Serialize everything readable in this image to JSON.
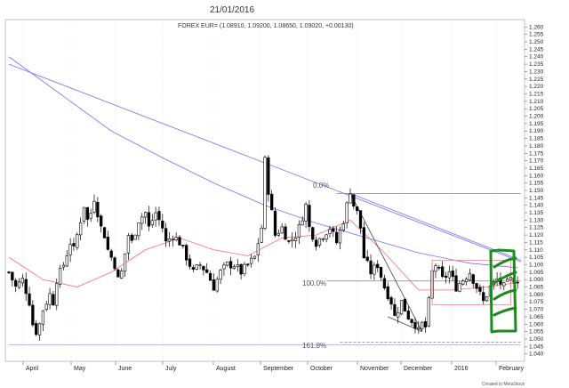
{
  "header": {
    "date": "21/01/2016",
    "subtitle": "FOREX EUR= (1.08910, 1.09200, 1.08650, 1.09020, +0.00130)"
  },
  "credit": "Created in MetaStock",
  "fib_labels": [
    "0.0%",
    "100.0%",
    "161.8%"
  ],
  "colors": {
    "background": "#ffffff",
    "grid": "#cfcfcf",
    "candle": "#000000",
    "ma_short": "#ff6a6a",
    "ma_long": "#6f6fff",
    "fib_line": "#666666",
    "box": "#ff8080",
    "annotation_green": "#1e8a1e"
  },
  "chart_data": {
    "type": "candlestick",
    "ylim": [
      1.035,
      1.265
    ],
    "y_ticks": [
      "1.260",
      "1.255",
      "1.250",
      "1.245",
      "1.240",
      "1.235",
      "1.230",
      "1.225",
      "1.220",
      "1.215",
      "1.210",
      "1.205",
      "1.200",
      "1.195",
      "1.190",
      "1.185",
      "1.180",
      "1.175",
      "1.170",
      "1.165",
      "1.160",
      "1.155",
      "1.150",
      "1.145",
      "1.140",
      "1.135",
      "1.130",
      "1.125",
      "1.120",
      "1.115",
      "1.110",
      "1.105",
      "1.100",
      "1.095",
      "1.090",
      "1.085",
      "1.080",
      "1.075",
      "1.070",
      "1.065",
      "1.060",
      "1.055",
      "1.050",
      "1.045",
      "1.040"
    ],
    "x_labels": [
      "April",
      "May",
      "June",
      "July",
      "August",
      "September",
      "October",
      "November",
      "December",
      "2016",
      "February"
    ],
    "close_path": [
      [
        0,
        1.095
      ],
      [
        2,
        1.085
      ],
      [
        4,
        1.09
      ],
      [
        6,
        1.075
      ],
      [
        7,
        1.06
      ],
      [
        8,
        1.055
      ],
      [
        9,
        1.06
      ],
      [
        10,
        1.07
      ],
      [
        12,
        1.08
      ],
      [
        13,
        1.075
      ],
      [
        14,
        1.09
      ],
      [
        16,
        1.1
      ],
      [
        18,
        1.115
      ],
      [
        19,
        1.11
      ],
      [
        20,
        1.12
      ],
      [
        22,
        1.14
      ],
      [
        23,
        1.13
      ],
      [
        24,
        1.135
      ],
      [
        25,
        1.145
      ],
      [
        27,
        1.125
      ],
      [
        28,
        1.12
      ],
      [
        29,
        1.11
      ],
      [
        31,
        1.1
      ],
      [
        32,
        1.09
      ],
      [
        33,
        1.095
      ],
      [
        35,
        1.12
      ],
      [
        36,
        1.115
      ],
      [
        38,
        1.13
      ],
      [
        40,
        1.135
      ],
      [
        41,
        1.125
      ],
      [
        42,
        1.13
      ],
      [
        43,
        1.135
      ],
      [
        45,
        1.125
      ],
      [
        46,
        1.115
      ],
      [
        48,
        1.12
      ],
      [
        50,
        1.115
      ],
      [
        52,
        1.105
      ],
      [
        54,
        1.095
      ],
      [
        56,
        1.1
      ],
      [
        58,
        1.095
      ],
      [
        59,
        1.09
      ],
      [
        60,
        1.085
      ],
      [
        62,
        1.095
      ],
      [
        64,
        1.1
      ],
      [
        66,
        1.1
      ],
      [
        68,
        1.095
      ],
      [
        70,
        1.1
      ],
      [
        72,
        1.105
      ],
      [
        73,
        1.115
      ],
      [
        74,
        1.125
      ],
      [
        75,
        1.17
      ],
      [
        76,
        1.15
      ],
      [
        77,
        1.135
      ],
      [
        78,
        1.12
      ],
      [
        80,
        1.125
      ],
      [
        82,
        1.115
      ],
      [
        84,
        1.12
      ],
      [
        85,
        1.125
      ],
      [
        87,
        1.14
      ],
      [
        88,
        1.125
      ],
      [
        89,
        1.12
      ],
      [
        90,
        1.115
      ],
      [
        92,
        1.12
      ],
      [
        94,
        1.125
      ],
      [
        96,
        1.115
      ],
      [
        98,
        1.13
      ],
      [
        99,
        1.14
      ],
      [
        100,
        1.15
      ],
      [
        101,
        1.14
      ],
      [
        102,
        1.135
      ],
      [
        103,
        1.125
      ],
      [
        104,
        1.105
      ],
      [
        106,
        1.095
      ],
      [
        108,
        1.1
      ],
      [
        110,
        1.085
      ],
      [
        112,
        1.075
      ],
      [
        113,
        1.065
      ],
      [
        115,
        1.075
      ],
      [
        117,
        1.065
      ],
      [
        119,
        1.06
      ],
      [
        120,
        1.055
      ],
      [
        121,
        1.06
      ],
      [
        122,
        1.058
      ],
      [
        123,
        1.075
      ],
      [
        124,
        1.095
      ],
      [
        125,
        1.1
      ],
      [
        127,
        1.09
      ],
      [
        129,
        1.095
      ],
      [
        131,
        1.085
      ],
      [
        133,
        1.09
      ],
      [
        135,
        1.095
      ],
      [
        137,
        1.085
      ],
      [
        139,
        1.075
      ],
      [
        141,
        1.085
      ],
      [
        143,
        1.09
      ],
      [
        145,
        1.085
      ],
      [
        147,
        1.09
      ],
      [
        149,
        1.09
      ]
    ],
    "n_bars": 150,
    "ma_short_path": [
      [
        0,
        1.105
      ],
      [
        10,
        1.09
      ],
      [
        20,
        1.085
      ],
      [
        30,
        1.095
      ],
      [
        40,
        1.11
      ],
      [
        50,
        1.118
      ],
      [
        60,
        1.11
      ],
      [
        70,
        1.106
      ],
      [
        80,
        1.118
      ],
      [
        90,
        1.12
      ],
      [
        100,
        1.13
      ],
      [
        110,
        1.108
      ],
      [
        120,
        1.083
      ],
      [
        130,
        1.083
      ],
      [
        140,
        1.085
      ],
      [
        149,
        1.088
      ]
    ],
    "ma_long_path": [
      [
        0,
        1.24
      ],
      [
        15,
        1.215
      ],
      [
        30,
        1.19
      ],
      [
        45,
        1.172
      ],
      [
        60,
        1.155
      ],
      [
        75,
        1.14
      ],
      [
        90,
        1.128
      ],
      [
        105,
        1.118
      ],
      [
        120,
        1.108
      ],
      [
        135,
        1.101
      ],
      [
        149,
        1.098
      ]
    ],
    "trendlines": [
      {
        "from": [
          0,
          1.235
        ],
        "to": [
          150,
          1.102
        ]
      },
      {
        "from": [
          100,
          1.148
        ],
        "to": [
          150,
          1.103
        ]
      },
      {
        "from": [
          100,
          1.148
        ],
        "to": [
          121,
          1.055
        ]
      },
      {
        "from": [
          111,
          1.065
        ],
        "to": [
          121,
          1.055
        ]
      }
    ],
    "horizontal_lines": [
      {
        "level": 1.046,
        "from": 0,
        "to": 150
      },
      {
        "level": 1.148,
        "from": 96,
        "to": 150
      },
      {
        "level": 1.089,
        "from": 93,
        "to": 150
      },
      {
        "level": 1.048,
        "from": 97,
        "to": 150
      }
    ],
    "fib_levels": [
      1.15,
      1.088,
      1.048
    ],
    "box": {
      "x_from": 124,
      "x_to": 147,
      "y_top": 1.103,
      "y_bottom": 1.073
    }
  }
}
